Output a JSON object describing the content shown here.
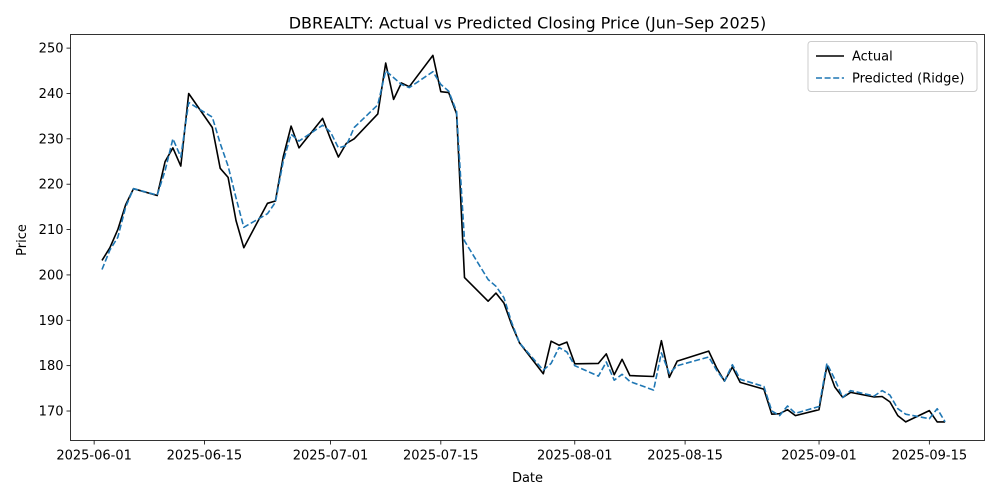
{
  "chart_data": {
    "type": "line",
    "title": "DBREALTY: Actual vs Predicted Closing Price (Jun–Sep 2025)",
    "xlabel": "Date",
    "ylabel": "Price",
    "xlim": [
      "2025-05-29",
      "2025-09-22"
    ],
    "ylim": [
      163.5,
      253
    ],
    "x_ticks": [
      "2025-06-01",
      "2025-06-15",
      "2025-07-01",
      "2025-07-15",
      "2025-08-01",
      "2025-08-15",
      "2025-09-01",
      "2025-09-15"
    ],
    "y_ticks": [
      170,
      180,
      190,
      200,
      210,
      220,
      230,
      240,
      250
    ],
    "legend_position": "upper right",
    "grid": false,
    "dates": [
      "2025-06-02",
      "2025-06-03",
      "2025-06-04",
      "2025-06-05",
      "2025-06-06",
      "2025-06-09",
      "2025-06-10",
      "2025-06-11",
      "2025-06-12",
      "2025-06-13",
      "2025-06-16",
      "2025-06-17",
      "2025-06-18",
      "2025-06-19",
      "2025-06-20",
      "2025-06-23",
      "2025-06-24",
      "2025-06-25",
      "2025-06-26",
      "2025-06-27",
      "2025-06-30",
      "2025-07-01",
      "2025-07-02",
      "2025-07-03",
      "2025-07-04",
      "2025-07-07",
      "2025-07-08",
      "2025-07-09",
      "2025-07-10",
      "2025-07-11",
      "2025-07-14",
      "2025-07-15",
      "2025-07-16",
      "2025-07-17",
      "2025-07-18",
      "2025-07-21",
      "2025-07-22",
      "2025-07-23",
      "2025-07-24",
      "2025-07-25",
      "2025-07-28",
      "2025-07-29",
      "2025-07-30",
      "2025-07-31",
      "2025-08-01",
      "2025-08-04",
      "2025-08-05",
      "2025-08-06",
      "2025-08-07",
      "2025-08-08",
      "2025-08-11",
      "2025-08-12",
      "2025-08-13",
      "2025-08-14",
      "2025-08-18",
      "2025-08-19",
      "2025-08-20",
      "2025-08-21",
      "2025-08-22",
      "2025-08-25",
      "2025-08-26",
      "2025-08-27",
      "2025-08-28",
      "2025-08-29",
      "2025-09-01",
      "2025-09-02",
      "2025-09-03",
      "2025-09-04",
      "2025-09-05",
      "2025-09-08",
      "2025-09-09",
      "2025-09-10",
      "2025-09-11",
      "2025-09-12",
      "2025-09-15",
      "2025-09-16",
      "2025-09-17"
    ],
    "series": [
      {
        "name": "Actual",
        "color": "#000000",
        "style": "solid",
        "values": [
          203.2,
          206.0,
          210.0,
          215.5,
          219.0,
          217.5,
          225.0,
          228.0,
          224.0,
          240.0,
          232.5,
          223.5,
          221.5,
          212.0,
          206.0,
          215.8,
          216.3,
          226.0,
          232.8,
          228.0,
          234.5,
          230.0,
          226.0,
          229.0,
          230.0,
          235.5,
          246.7,
          238.7,
          242.3,
          241.5,
          248.4,
          240.4,
          240.2,
          235.5,
          199.4,
          194.2,
          196.0,
          193.8,
          189.0,
          185.0,
          178.2,
          185.4,
          184.5,
          185.2,
          180.4,
          180.5,
          182.6,
          178.0,
          181.4,
          177.8,
          177.6,
          185.5,
          177.4,
          181.0,
          183.2,
          179.5,
          176.6,
          179.7,
          176.3,
          174.8,
          169.3,
          169.4,
          170.3,
          169.0,
          170.3,
          180.0,
          175.3,
          173.0,
          174.1,
          173.1,
          173.2,
          172.0,
          169.0,
          167.6,
          170.1,
          167.6,
          167.6
        ]
      },
      {
        "name": "Predicted (Ridge)",
        "color": "#1f77b4",
        "style": "dashed",
        "values": [
          201.2,
          205.5,
          208.3,
          215.0,
          219.0,
          217.6,
          223.0,
          230.0,
          226.0,
          238.0,
          234.8,
          229.0,
          224.0,
          217.0,
          210.5,
          213.5,
          216.0,
          225.0,
          231.0,
          229.5,
          233.0,
          231.5,
          228.0,
          228.5,
          232.5,
          237.5,
          245.0,
          243.5,
          242.0,
          241.3,
          244.8,
          242.0,
          240.5,
          236.0,
          207.5,
          199.0,
          197.5,
          195.0,
          189.5,
          185.0,
          179.0,
          180.5,
          184.0,
          183.0,
          180.0,
          177.7,
          180.8,
          176.8,
          178.1,
          176.5,
          174.6,
          182.8,
          178.3,
          180.0,
          181.9,
          179.0,
          176.6,
          180.2,
          177.0,
          175.4,
          170.0,
          169.0,
          171.1,
          169.5,
          171.0,
          180.5,
          177.0,
          173.0,
          174.5,
          173.3,
          174.5,
          173.5,
          170.5,
          169.3,
          168.3,
          170.5,
          167.6
        ]
      }
    ]
  }
}
